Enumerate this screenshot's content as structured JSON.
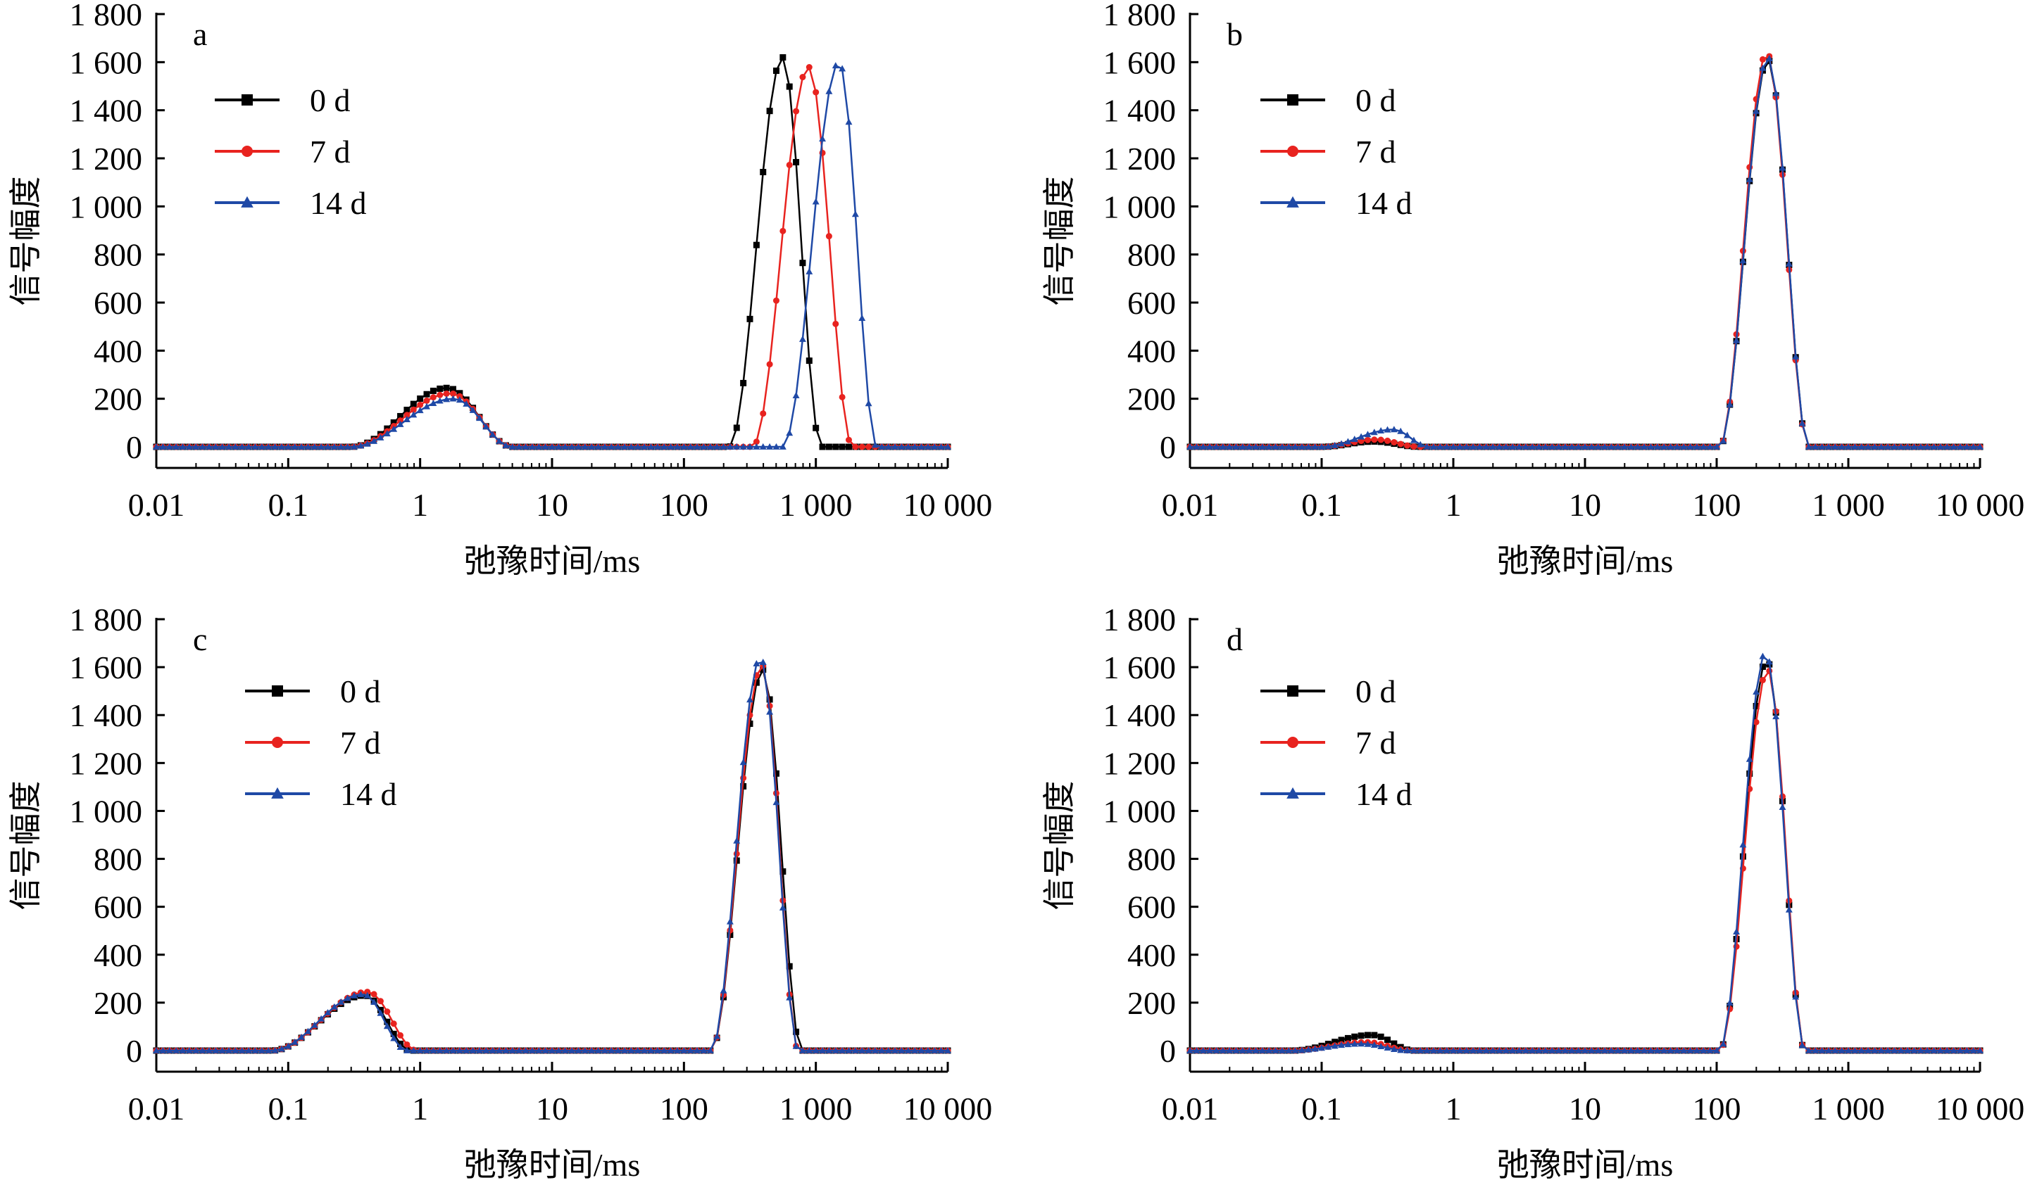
{
  "figure": {
    "panels": [
      "a",
      "b",
      "c",
      "d"
    ]
  },
  "colors": {
    "0 d": "#000000",
    "7 d": "#e8231f",
    "14 d": "#1f49a6",
    "axis": "#000000"
  },
  "markers": {
    "0 d": "square",
    "7 d": "circle",
    "14 d": "triangle"
  },
  "chart_data": [
    {
      "panel": "a",
      "type": "line",
      "xscale": "log",
      "xlim": [
        0.01,
        10000
      ],
      "ylim": [
        0,
        1800
      ],
      "xlabel": "弛豫时间/ms",
      "ylabel": "信号幅度",
      "xticks": [
        0.01,
        0.1,
        1,
        10,
        100,
        1000,
        10000
      ],
      "xtick_labels": [
        "0.01",
        "0.1",
        "1",
        "10",
        "100",
        "1 000",
        "10 000"
      ],
      "yticks": [
        0,
        200,
        400,
        600,
        800,
        1000,
        1200,
        1400,
        1600,
        1800
      ],
      "ytick_labels": [
        "0",
        "200",
        "400",
        "600",
        "800",
        "1 000",
        "1 200",
        "1 400",
        "1 600",
        "1 800"
      ],
      "legend": {
        "placement": "upper-left",
        "entries": [
          "0 d",
          "7 d",
          "14 d"
        ]
      },
      "series": [
        {
          "name": "0 d",
          "peaks": [
            {
              "start": 0.3,
              "apex": 1.6,
              "end": 5.0,
              "amp": 245
            },
            {
              "start": 220,
              "apex": 560,
              "end": 1100,
              "amp": 1620
            }
          ]
        },
        {
          "name": "7 d",
          "peaks": [
            {
              "start": 0.3,
              "apex": 1.7,
              "end": 5.0,
              "amp": 222
            },
            {
              "start": 330,
              "apex": 880,
              "end": 1900,
              "amp": 1580
            }
          ]
        },
        {
          "name": "14 d",
          "peaks": [
            {
              "start": 0.3,
              "apex": 1.8,
              "end": 5.0,
              "amp": 200
            },
            {
              "start": 560,
              "apex": 1500,
              "end": 2900,
              "amp": 1600
            }
          ]
        }
      ]
    },
    {
      "panel": "b",
      "type": "line",
      "xscale": "log",
      "xlim": [
        0.01,
        10000
      ],
      "ylim": [
        0,
        1800
      ],
      "xlabel": "弛豫时间/ms",
      "ylabel": "信号幅度",
      "xticks": [
        0.01,
        0.1,
        1,
        10,
        100,
        1000,
        10000
      ],
      "xtick_labels": [
        "0.01",
        "0.1",
        "1",
        "10",
        "100",
        "1 000",
        "10 000"
      ],
      "yticks": [
        0,
        200,
        400,
        600,
        800,
        1000,
        1200,
        1400,
        1600,
        1800
      ],
      "ytick_labels": [
        "0",
        "200",
        "400",
        "600",
        "800",
        "1 000",
        "1 200",
        "1 400",
        "1 600",
        "1 800"
      ],
      "legend": {
        "placement": "upper-left",
        "entries": [
          "0 d",
          "7 d",
          "14 d"
        ]
      },
      "series": [
        {
          "name": "0 d",
          "peaks": [
            {
              "start": 0.1,
              "apex": 0.25,
              "end": 0.55,
              "amp": 22
            },
            {
              "start": 105,
              "apex": 245,
              "end": 500,
              "amp": 1610
            }
          ]
        },
        {
          "name": "7 d",
          "peaks": [
            {
              "start": 0.1,
              "apex": 0.26,
              "end": 0.55,
              "amp": 30
            },
            {
              "start": 105,
              "apex": 240,
              "end": 500,
              "amp": 1640
            }
          ]
        },
        {
          "name": "14 d",
          "peaks": [
            {
              "start": 0.1,
              "apex": 0.35,
              "end": 0.65,
              "amp": 72
            },
            {
              "start": 105,
              "apex": 245,
              "end": 500,
              "amp": 1620
            }
          ]
        }
      ]
    },
    {
      "panel": "c",
      "type": "line",
      "xscale": "log",
      "xlim": [
        0.01,
        10000
      ],
      "ylim": [
        0,
        1800
      ],
      "xlabel": "弛豫时间/ms",
      "ylabel": "信号幅度",
      "xticks": [
        0.01,
        0.1,
        1,
        10,
        100,
        1000,
        10000
      ],
      "xtick_labels": [
        "0.01",
        "0.1",
        "1",
        "10",
        "100",
        "1 000",
        "10 000"
      ],
      "yticks": [
        0,
        200,
        400,
        600,
        800,
        1000,
        1200,
        1400,
        1600,
        1800
      ],
      "ytick_labels": [
        "0",
        "200",
        "400",
        "600",
        "800",
        "1 000",
        "1 200",
        "1 400",
        "1 600",
        "1 800"
      ],
      "legend": {
        "placement": "upper-left",
        "entries": [
          "0 d",
          "7 d",
          "14 d"
        ]
      },
      "series": [
        {
          "name": "0 d",
          "peaks": [
            {
              "start": 0.075,
              "apex": 0.38,
              "end": 0.85,
              "amp": 230
            },
            {
              "start": 160,
              "apex": 395,
              "end": 780,
              "amp": 1590
            }
          ]
        },
        {
          "name": "7 d",
          "peaks": [
            {
              "start": 0.075,
              "apex": 0.4,
              "end": 0.95,
              "amp": 245
            },
            {
              "start": 160,
              "apex": 390,
              "end": 740,
              "amp": 1610
            }
          ]
        },
        {
          "name": "14 d",
          "peaks": [
            {
              "start": 0.075,
              "apex": 0.37,
              "end": 0.8,
              "amp": 235
            },
            {
              "start": 160,
              "apex": 380,
              "end": 740,
              "amp": 1640
            }
          ]
        }
      ]
    },
    {
      "panel": "d",
      "type": "line",
      "xscale": "log",
      "xlim": [
        0.01,
        10000
      ],
      "ylim": [
        0,
        1800
      ],
      "xlabel": "弛豫时间/ms",
      "ylabel": "信号幅度",
      "xticks": [
        0.01,
        0.1,
        1,
        10,
        100,
        1000,
        10000
      ],
      "xtick_labels": [
        "0.01",
        "0.1",
        "1",
        "10",
        "100",
        "1 000",
        "10 000"
      ],
      "yticks": [
        0,
        200,
        400,
        600,
        800,
        1000,
        1200,
        1400,
        1600,
        1800
      ],
      "ytick_labels": [
        "0",
        "200",
        "400",
        "600",
        "800",
        "1 000",
        "1 200",
        "1 400",
        "1 600",
        "1 800"
      ],
      "legend": {
        "placement": "upper-left",
        "entries": [
          "0 d",
          "7 d",
          "14 d"
        ]
      },
      "series": [
        {
          "name": "0 d",
          "peaks": [
            {
              "start": 0.06,
              "apex": 0.24,
              "end": 0.5,
              "amp": 65
            },
            {
              "start": 105,
              "apex": 240,
              "end": 470,
              "amp": 1630
            }
          ]
        },
        {
          "name": "7 d",
          "peaks": [
            {
              "start": 0.06,
              "apex": 0.22,
              "end": 0.48,
              "amp": 35
            },
            {
              "start": 105,
              "apex": 245,
              "end": 470,
              "amp": 1590
            }
          ]
        },
        {
          "name": "14 d",
          "peaks": [
            {
              "start": 0.06,
              "apex": 0.2,
              "end": 0.45,
              "amp": 28
            },
            {
              "start": 105,
              "apex": 235,
              "end": 470,
              "amp": 1660
            }
          ]
        }
      ]
    }
  ]
}
